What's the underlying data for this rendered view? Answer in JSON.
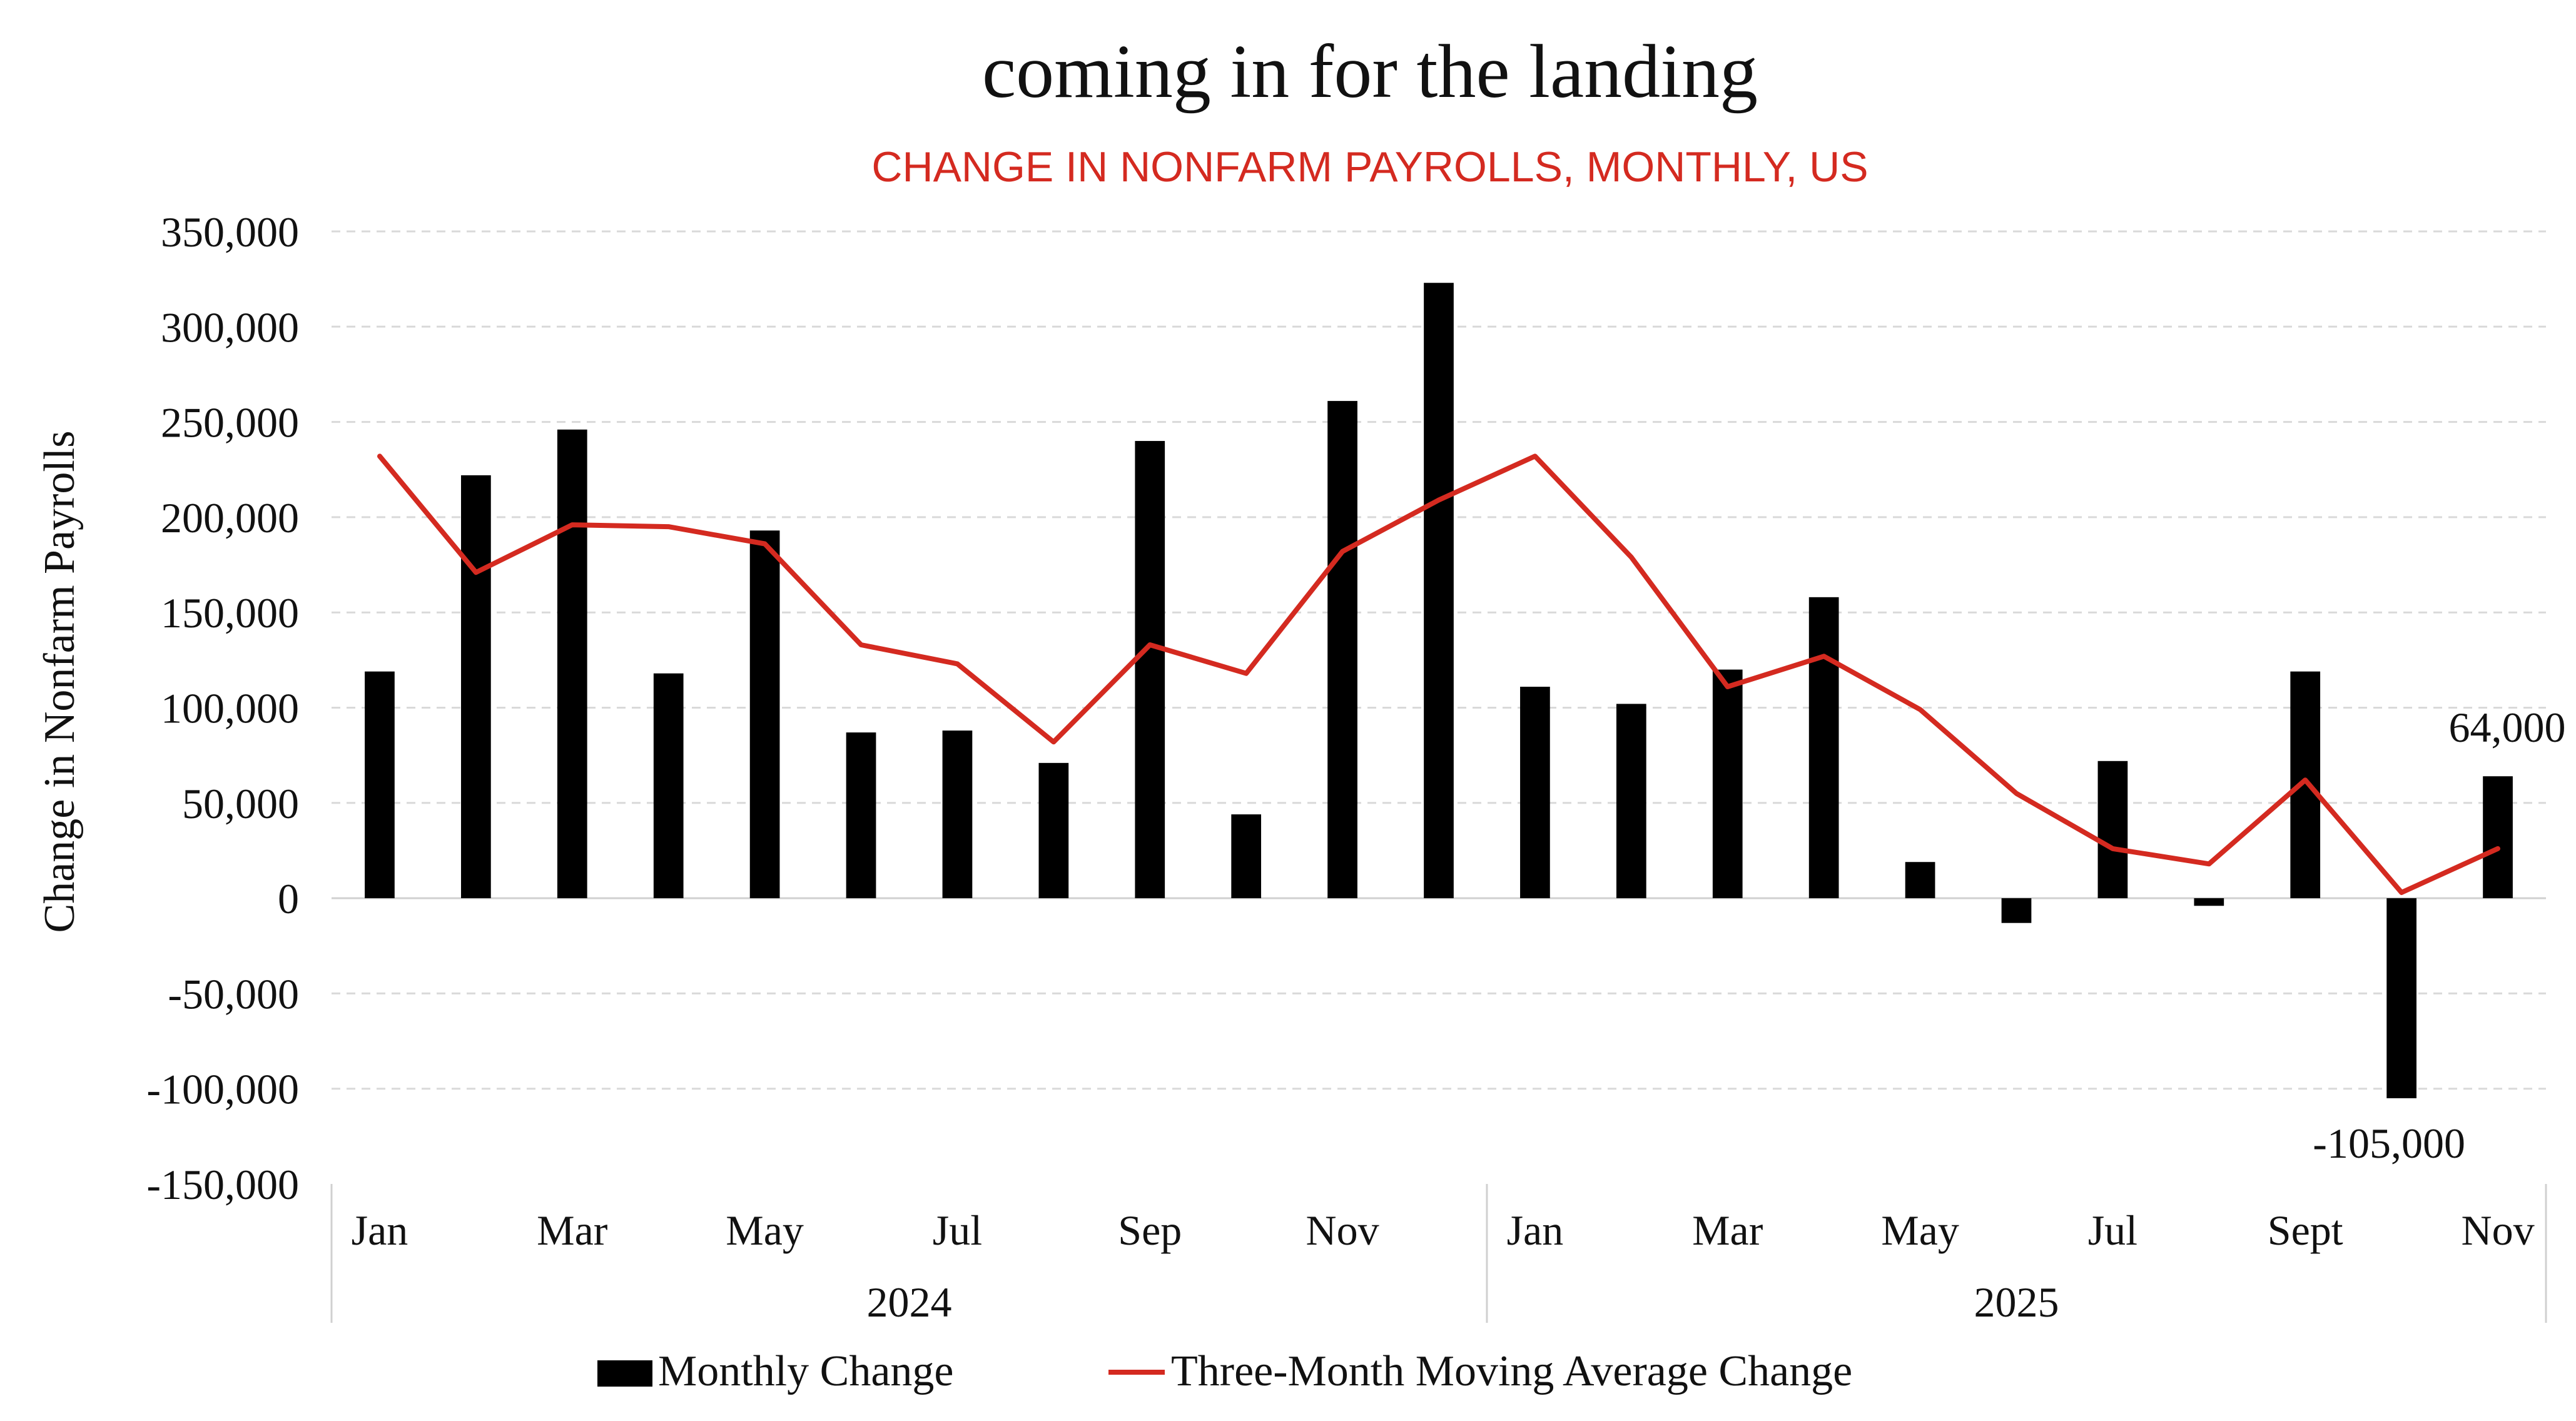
{
  "chart_data": {
    "type": "bar+line",
    "title": "coming in for the landing",
    "subtitle": "CHANGE IN NONFARM PAYROLLS, MONTHLY, US",
    "ylabel": "Change in Nonfarm Payrolls",
    "xlabel": "",
    "ylim": [
      -150000,
      350000
    ],
    "y_ticks": [
      350000,
      300000,
      250000,
      200000,
      150000,
      100000,
      50000,
      0,
      -50000,
      -100000,
      -150000
    ],
    "y_tick_labels": [
      "350,000",
      "300,000",
      "250,000",
      "200,000",
      "150,000",
      "100,000",
      "50,000",
      "0",
      "-50,000",
      "-100,000",
      "-150,000"
    ],
    "grid": true,
    "categories": [
      "Jan 2024",
      "Feb 2024",
      "Mar 2024",
      "Apr 2024",
      "May 2024",
      "Jun 2024",
      "Jul 2024",
      "Aug 2024",
      "Sep 2024",
      "Oct 2024",
      "Nov 2024",
      "Dec 2024",
      "Jan 2025",
      "Feb 2025",
      "Mar 2025",
      "Apr 2025",
      "May 2025",
      "Jun 2025",
      "Jul 2025",
      "Aug 2025",
      "Sep 2025",
      "Oct 2025",
      "Nov 2025"
    ],
    "x_tick_labels": [
      {
        "index": 0,
        "label": "Jan"
      },
      {
        "index": 2,
        "label": "Mar"
      },
      {
        "index": 4,
        "label": "May"
      },
      {
        "index": 6,
        "label": "Jul"
      },
      {
        "index": 8,
        "label": "Sep"
      },
      {
        "index": 10,
        "label": "Nov"
      },
      {
        "index": 12,
        "label": "Jan"
      },
      {
        "index": 14,
        "label": "Mar"
      },
      {
        "index": 16,
        "label": "May"
      },
      {
        "index": 18,
        "label": "Jul"
      },
      {
        "index": 20,
        "label": "Sept"
      },
      {
        "index": 22,
        "label": "Nov"
      }
    ],
    "year_groups": [
      {
        "label": "2024",
        "start": 0,
        "end": 11
      },
      {
        "label": "2025",
        "start": 12,
        "end": 22
      }
    ],
    "series": [
      {
        "name": "Monthly Change",
        "type": "bar",
        "color": "#000000",
        "values": [
          119000,
          222000,
          246000,
          118000,
          193000,
          87000,
          88000,
          71000,
          240000,
          44000,
          261000,
          323000,
          111000,
          102000,
          120000,
          158000,
          19000,
          -13000,
          72000,
          -4000,
          119000,
          -105000,
          64000
        ]
      },
      {
        "name": "Three-Month Moving Average Change",
        "type": "line",
        "color": "#d42a20",
        "values": [
          232000,
          171000,
          196000,
          195000,
          186000,
          133000,
          123000,
          82000,
          133000,
          118000,
          182000,
          209000,
          232000,
          179000,
          111000,
          127000,
          99000,
          55000,
          26000,
          18000,
          62000,
          3000,
          26000
        ]
      }
    ],
    "annotations": [
      {
        "index": 22,
        "text": "64,000",
        "position": "above"
      },
      {
        "index": 21,
        "text": "-105,000",
        "position": "below"
      }
    ],
    "legend": {
      "placement": "bottom-center",
      "entries": [
        "Monthly Change",
        "Three-Month Moving Average Change"
      ]
    }
  }
}
